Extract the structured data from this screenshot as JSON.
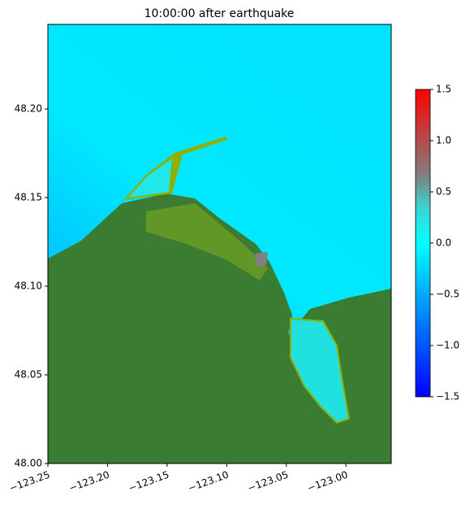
{
  "chart_data": {
    "type": "map",
    "title": "10:00:00 after earthquake",
    "xlim": [
      -123.25,
      -122.962
    ],
    "ylim": [
      48.0,
      48.2477
    ],
    "xticks": [
      {
        "value": -123.25,
        "label": "−123.25"
      },
      {
        "value": -123.2,
        "label": "−123.20"
      },
      {
        "value": -123.15,
        "label": "−123.15"
      },
      {
        "value": -123.1,
        "label": "−123.10"
      },
      {
        "value": -123.05,
        "label": "−123.05"
      },
      {
        "value": -123.0,
        "label": "−123.00"
      }
    ],
    "yticks": [
      {
        "value": 48.0,
        "label": "48.00"
      },
      {
        "value": 48.05,
        "label": "48.05"
      },
      {
        "value": 48.1,
        "label": "48.10"
      },
      {
        "value": 48.15,
        "label": "48.15"
      },
      {
        "value": 48.2,
        "label": "48.20"
      }
    ],
    "clim": [
      -1.5,
      1.5
    ],
    "cticks": [
      {
        "value": -1.5,
        "label": "−1.5"
      },
      {
        "value": -1.0,
        "label": "−1.0"
      },
      {
        "value": -0.5,
        "label": "−0.5"
      },
      {
        "value": 0.0,
        "label": "0.0"
      },
      0.5,
      {
        "value": 1.0,
        "label": "1.0"
      },
      1.5
    ]
  }
}
